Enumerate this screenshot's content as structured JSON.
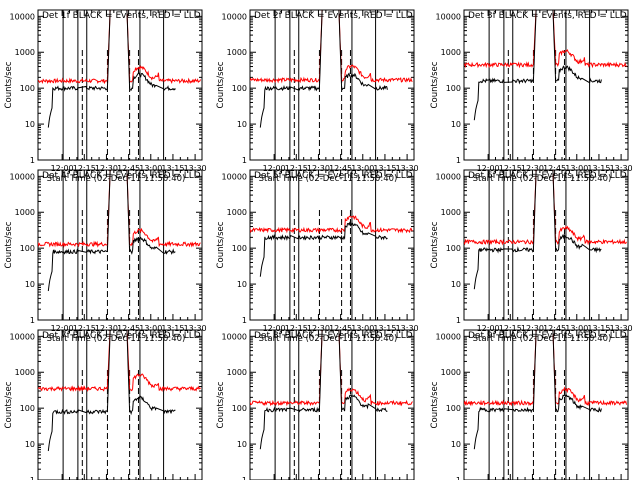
{
  "chart_data": [
    {
      "type": "line",
      "title": "Det 1f BLACK = Events, RED = LLD",
      "black_base": 100,
      "red_base": 160,
      "black_peak": true,
      "red_peak": true
    },
    {
      "type": "line",
      "title": "Det 2f BLACK = Events, RED = LLD",
      "black_base": 100,
      "red_base": 170,
      "black_peak": true,
      "red_peak": true
    },
    {
      "type": "line",
      "title": "Det 3f BLACK = Events, RED = LLD",
      "black_base": 160,
      "red_base": 450,
      "black_peak": true,
      "red_peak": true
    },
    {
      "type": "line",
      "title": "Det 4f BLACK = Events, RED = LLD",
      "black_base": 80,
      "red_base": 130,
      "black_peak": true,
      "red_peak": true
    },
    {
      "type": "line",
      "title": "Det 5f BLACK = Events, RED = LLD",
      "black_base": 200,
      "red_base": 320,
      "black_peak": false,
      "red_peak": false
    },
    {
      "type": "line",
      "title": "Det 6f BLACK = Events, RED = LLD",
      "black_base": 90,
      "red_base": 150,
      "black_peak": true,
      "red_peak": true
    },
    {
      "type": "line",
      "title": "Det 7f BLACK = Events, RED = LLD",
      "black_base": 80,
      "red_base": 350,
      "black_peak": true,
      "red_peak": true
    },
    {
      "type": "line",
      "title": "Det 8f BLACK = Events, RED = LLD",
      "black_base": 90,
      "red_base": 140,
      "black_peak": true,
      "red_peak": true
    },
    {
      "type": "line",
      "title": "Det 9f BLACK = Events, RED = LLD",
      "black_base": 90,
      "red_base": 140,
      "black_peak": true,
      "red_peak": true
    }
  ],
  "shared": {
    "ylabel": "Counts/sec",
    "xlabel": "Start Time (02-Dec-11 11:50:40)",
    "yticks": [
      "1",
      "10",
      "100",
      "1000",
      "10000"
    ],
    "xticks": [
      "12:00",
      "12:15",
      "12:30",
      "12:45",
      "13:00",
      "13:15",
      "13:30"
    ],
    "yscale": "log",
    "ylim": [
      1,
      15000
    ],
    "xlim_minutes": [
      -7,
      104
    ],
    "series_colors": {
      "events": "#000000",
      "lld": "#ff0000"
    }
  }
}
